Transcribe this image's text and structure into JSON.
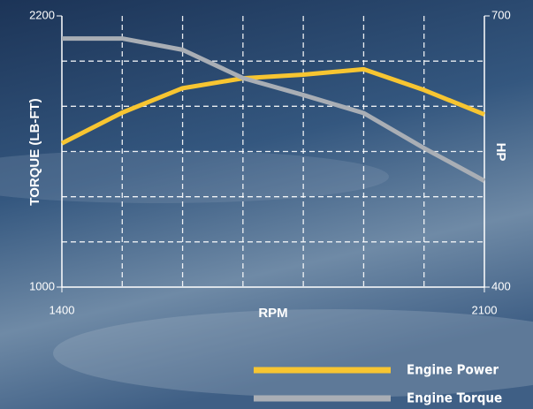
{
  "chart_data": {
    "type": "line",
    "x_label": "RPM",
    "y_label": "TORQUE (LB-FT)",
    "y2_label": "HP",
    "x": [
      1400,
      1500,
      1600,
      1700,
      1800,
      1900,
      2000,
      2100
    ],
    "series": [
      {
        "name": "Engine Power",
        "color": "#f7c531",
        "axis": "y2",
        "values": [
          559,
          593,
          620,
          631,
          635,
          641,
          618,
          591
        ]
      },
      {
        "name": "Engine Torque",
        "color": "#a9aeb5",
        "values": [
          2100,
          2100,
          2050,
          1925,
          1850,
          1770,
          1615,
          1470
        ]
      }
    ],
    "xlim": [
      1400,
      2100
    ],
    "xticks": [
      1400,
      2100
    ],
    "ylim": [
      1000,
      2200
    ],
    "yticks": [
      1000,
      2200
    ],
    "y2lim": [
      400,
      700
    ],
    "y2ticks": [
      400,
      700
    ],
    "xgrid": [
      1500,
      1600,
      1700,
      1800,
      1900,
      2000
    ],
    "ygrid": [
      1200,
      1400,
      1600,
      1800,
      2000
    ],
    "grid": true,
    "legend": "bottom-right"
  }
}
